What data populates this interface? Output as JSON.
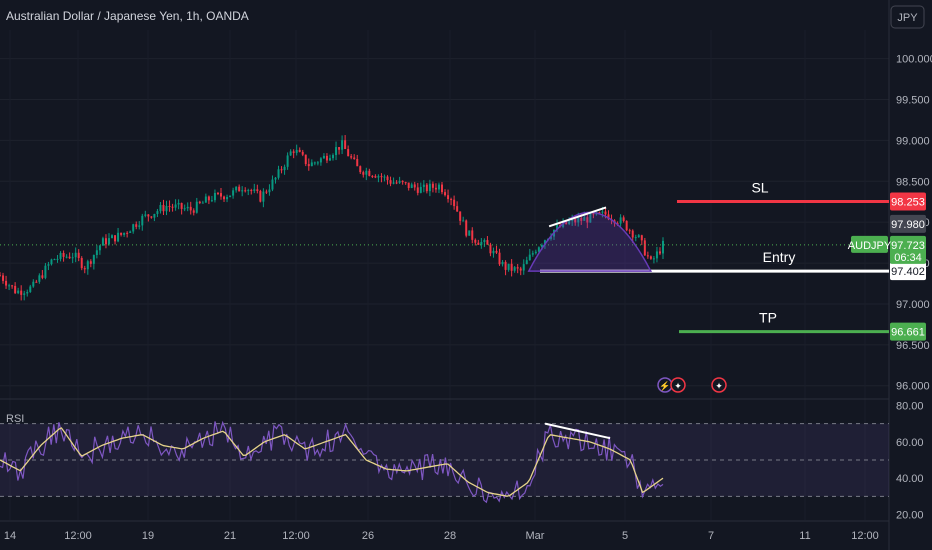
{
  "chart_data": {
    "type": "candlestick",
    "title": "Australian Dollar / Japanese Yen, 1h, OANDA",
    "currency": "JPY",
    "y_range": [
      95.85,
      100.35
    ],
    "y_ticks": [
      "100.000",
      "99.500",
      "99.000",
      "98.500",
      "98.000",
      "97.500",
      "97.000",
      "96.500",
      "96.000"
    ],
    "x_ticks": [
      "14",
      "12:00",
      "19",
      "21",
      "12:00",
      "26",
      "28",
      "Mar",
      "5",
      "7",
      "11",
      "12:00"
    ],
    "price_path": [
      {
        "x": 0.0,
        "y": 97.35
      },
      {
        "x": 0.4,
        "y": 97.15
      },
      {
        "x": 0.8,
        "y": 97.2
      },
      {
        "x": 1.3,
        "y": 97.55
      },
      {
        "x": 1.8,
        "y": 97.6
      },
      {
        "x": 2.1,
        "y": 97.45
      },
      {
        "x": 2.5,
        "y": 97.75
      },
      {
        "x": 3.0,
        "y": 97.85
      },
      {
        "x": 3.5,
        "y": 98.05
      },
      {
        "x": 4.1,
        "y": 98.2
      },
      {
        "x": 4.7,
        "y": 98.15
      },
      {
        "x": 5.2,
        "y": 98.3
      },
      {
        "x": 5.7,
        "y": 98.35
      },
      {
        "x": 6.0,
        "y": 98.45
      },
      {
        "x": 6.4,
        "y": 98.3
      },
      {
        "x": 6.8,
        "y": 98.55
      },
      {
        "x": 7.2,
        "y": 98.9
      },
      {
        "x": 7.6,
        "y": 98.7
      },
      {
        "x": 8.0,
        "y": 98.8
      },
      {
        "x": 8.4,
        "y": 98.95
      },
      {
        "x": 8.8,
        "y": 98.65
      },
      {
        "x": 9.2,
        "y": 98.6
      },
      {
        "x": 9.6,
        "y": 98.5
      },
      {
        "x": 10.0,
        "y": 98.45
      },
      {
        "x": 10.4,
        "y": 98.4
      },
      {
        "x": 10.8,
        "y": 98.45
      },
      {
        "x": 11.1,
        "y": 98.3
      },
      {
        "x": 11.5,
        "y": 97.85
      },
      {
        "x": 12.0,
        "y": 97.7
      },
      {
        "x": 12.4,
        "y": 97.45
      },
      {
        "x": 12.8,
        "y": 97.4
      },
      {
        "x": 13.2,
        "y": 97.7
      },
      {
        "x": 13.6,
        "y": 97.9
      },
      {
        "x": 14.0,
        "y": 98.0
      },
      {
        "x": 14.5,
        "y": 98.05
      },
      {
        "x": 14.9,
        "y": 98.1
      },
      {
        "x": 15.3,
        "y": 98.0
      },
      {
        "x": 15.7,
        "y": 97.8
      },
      {
        "x": 16.0,
        "y": 97.5
      },
      {
        "x": 16.3,
        "y": 97.72
      }
    ],
    "rsi": {
      "label": "RSI",
      "y_range": [
        17,
        83
      ],
      "y_ticks": [
        "80.00",
        "60.00",
        "40.00",
        "20.00"
      ],
      "band_upper": 70,
      "band_middle": 50,
      "band_lower": 30,
      "path": [
        {
          "x": 0.0,
          "y": 50
        },
        {
          "x": 0.5,
          "y": 44
        },
        {
          "x": 1.0,
          "y": 58
        },
        {
          "x": 1.5,
          "y": 68
        },
        {
          "x": 2.0,
          "y": 52
        },
        {
          "x": 2.5,
          "y": 58
        },
        {
          "x": 3.0,
          "y": 62
        },
        {
          "x": 3.5,
          "y": 64
        },
        {
          "x": 4.0,
          "y": 58
        },
        {
          "x": 4.5,
          "y": 56
        },
        {
          "x": 5.0,
          "y": 62
        },
        {
          "x": 5.5,
          "y": 66
        },
        {
          "x": 6.0,
          "y": 52
        },
        {
          "x": 6.5,
          "y": 60
        },
        {
          "x": 7.0,
          "y": 64
        },
        {
          "x": 7.5,
          "y": 56
        },
        {
          "x": 8.0,
          "y": 60
        },
        {
          "x": 8.5,
          "y": 64
        },
        {
          "x": 9.0,
          "y": 50
        },
        {
          "x": 9.5,
          "y": 45
        },
        {
          "x": 10.0,
          "y": 44
        },
        {
          "x": 10.5,
          "y": 46
        },
        {
          "x": 11.0,
          "y": 48
        },
        {
          "x": 11.5,
          "y": 38
        },
        {
          "x": 12.0,
          "y": 32
        },
        {
          "x": 12.5,
          "y": 30
        },
        {
          "x": 13.0,
          "y": 38
        },
        {
          "x": 13.5,
          "y": 64
        },
        {
          "x": 14.0,
          "y": 62
        },
        {
          "x": 14.5,
          "y": 60
        },
        {
          "x": 15.0,
          "y": 56
        },
        {
          "x": 15.5,
          "y": 50
        },
        {
          "x": 15.8,
          "y": 32
        },
        {
          "x": 16.3,
          "y": 40
        }
      ]
    },
    "levels": [
      {
        "name": "SL",
        "value": 98.253,
        "label": "98.253",
        "color": "#f23645"
      },
      {
        "name": "Entry",
        "value": 97.402,
        "label": "97.402",
        "color": "#ffffff"
      },
      {
        "name": "TP",
        "value": 96.661,
        "label": "96.661",
        "color": "#4caf50"
      }
    ],
    "price_tags": [
      {
        "value": 97.98,
        "label": "97.980",
        "color": "#b2b5be"
      }
    ],
    "last_price": {
      "symbol": "AUDJPY",
      "value": 97.723,
      "label": "97.723",
      "countdown": "06:34",
      "color": "#4caf50"
    }
  }
}
